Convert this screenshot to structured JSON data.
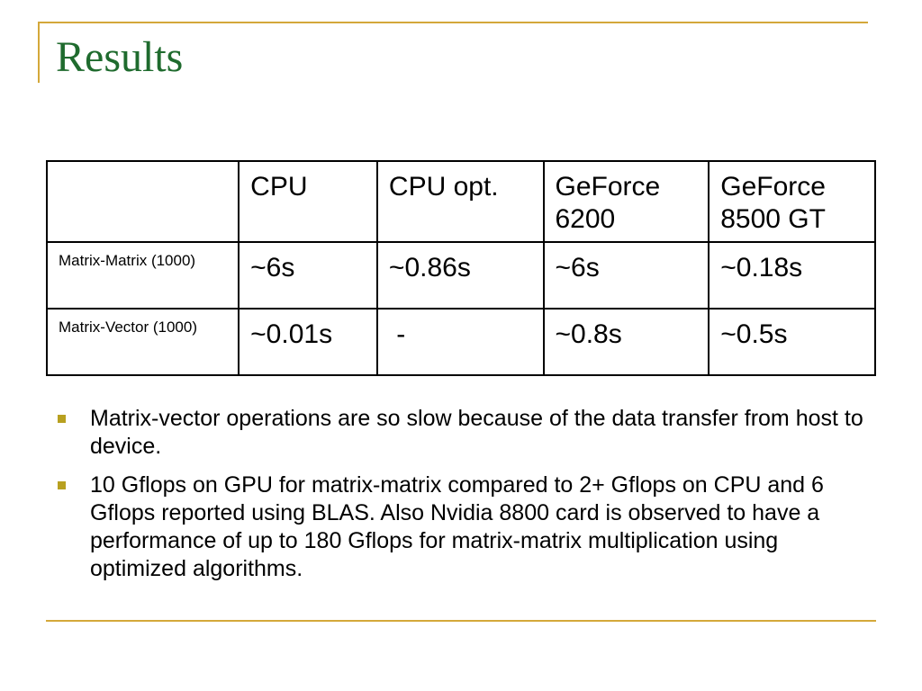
{
  "slide": {
    "title": "Results"
  },
  "table": {
    "header": [
      "",
      "CPU",
      "CPU opt.",
      "GeForce 6200",
      "GeForce 8500 GT"
    ],
    "rows": [
      {
        "label": "Matrix-Matrix (1000)",
        "cells": [
          "~6s",
          "~0.86s",
          "~6s",
          "~0.18s"
        ]
      },
      {
        "label": "Matrix-Vector (1000)",
        "cells": [
          "~0.01s",
          " -",
          "~0.8s",
          "~0.5s"
        ]
      }
    ]
  },
  "bullets": [
    "Matrix-vector operations are so slow because of the data transfer from host to device.",
    "10 Gflops on GPU for matrix-matrix compared to 2+ Gflops on CPU and 6 Gflops reported using BLAS. Also Nvidia 8800 card is observed to have a performance of up to 180 Gflops for matrix-matrix multiplication using optimized algorithms."
  ]
}
